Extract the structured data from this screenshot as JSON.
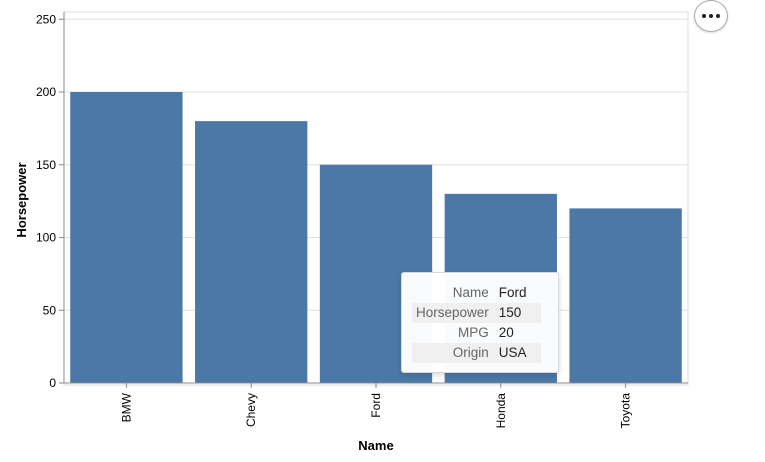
{
  "chart_data": {
    "type": "bar",
    "categories": [
      "BMW",
      "Chevy",
      "Ford",
      "Honda",
      "Toyota"
    ],
    "values": [
      200,
      180,
      150,
      130,
      120
    ],
    "title": "",
    "xlabel": "Name",
    "ylabel": "Horsepower",
    "ylim": [
      0,
      250
    ],
    "yticks": [
      0,
      50,
      100,
      150,
      200,
      250
    ],
    "grid": true,
    "bar_color": "#4c78a8"
  },
  "tooltip": {
    "rows": [
      {
        "key": "Name",
        "value": "Ford"
      },
      {
        "key": "Horsepower",
        "value": "150"
      },
      {
        "key": "MPG",
        "value": "20"
      },
      {
        "key": "Origin",
        "value": "USA"
      }
    ]
  },
  "actions_menu": {
    "icon": "more-horizontal-icon"
  }
}
